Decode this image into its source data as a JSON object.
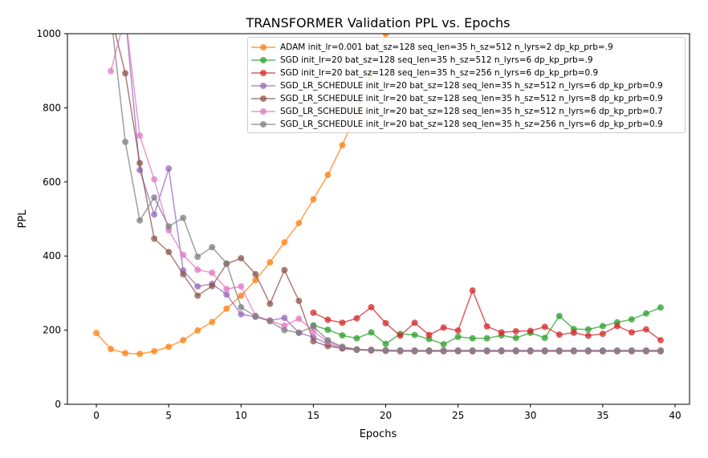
{
  "chart_data": {
    "type": "line",
    "title": "TRANSFORMER Validation PPL vs. Epochs",
    "xlabel": "Epochs",
    "ylabel": "PPL",
    "xlim": [
      -2,
      41
    ],
    "ylim": [
      0,
      1000
    ],
    "xticks": [
      0,
      5,
      10,
      15,
      20,
      25,
      30,
      35,
      40
    ],
    "yticks": [
      0,
      200,
      400,
      600,
      800,
      1000
    ],
    "grid": false,
    "legend_position": "top-right",
    "series": [
      {
        "name": "ADAM init_lr=0.001 bat_sz=128 seq_len=35 h_sz=512 n_lyrs=2 dp_kp_prb=.9",
        "color": "#ff7f0e",
        "x": [
          0,
          1,
          2,
          3,
          4,
          5,
          6,
          7,
          8,
          9,
          10,
          11,
          12,
          13,
          14,
          15,
          16,
          17,
          18,
          19,
          20
        ],
        "y": [
          192,
          149,
          138,
          136,
          143,
          155,
          173,
          199,
          222,
          258,
          293,
          335,
          383,
          437,
          489,
          553,
          619,
          699,
          790,
          890,
          1000
        ]
      },
      {
        "name": "SGD init_lr=20 bat_sz=128 seq_len=35 h_sz=512 n_lyrs=6 dp_kp_prb=.9",
        "color": "#2ca02c",
        "x": [
          15,
          16,
          17,
          18,
          19,
          20,
          21,
          22,
          23,
          24,
          25,
          26,
          27,
          28,
          29,
          30,
          31,
          32,
          33,
          34,
          35,
          36,
          37,
          38,
          39
        ],
        "y": [
          213,
          201,
          186,
          178,
          194,
          163,
          190,
          187,
          176,
          162,
          182,
          178,
          178,
          186,
          179,
          193,
          179,
          238,
          203,
          202,
          211,
          221,
          229,
          245,
          261
        ]
      },
      {
        "name": "SGD init_lr=20 bat_sz=128 seq_len=35 h_sz=256 n_lyrs=6 dp_kp_prb=0.9",
        "color": "#d62728",
        "x": [
          15,
          16,
          17,
          18,
          19,
          20,
          21,
          22,
          23,
          24,
          25,
          26,
          27,
          28,
          29,
          30,
          31,
          32,
          33,
          34,
          35,
          36,
          37,
          38,
          39
        ],
        "y": [
          247,
          228,
          220,
          232,
          262,
          219,
          185,
          220,
          187,
          207,
          199,
          307,
          210,
          194,
          197,
          198,
          209,
          188,
          193,
          185,
          190,
          211,
          194,
          202,
          173
        ]
      },
      {
        "name": "SGD_LR_SCHEDULE init_lr=20 bat_sz=128 seq_len=35 h_sz=512 n_lyrs=6 dp_kp_prb=0.9",
        "color": "#9467bd",
        "x": [
          1,
          2,
          3,
          4,
          5,
          6,
          7,
          8,
          9,
          10,
          11,
          12,
          13,
          14,
          15,
          16,
          17,
          18,
          19,
          20,
          21,
          22,
          23,
          24,
          25,
          26,
          27,
          28,
          29,
          30,
          31,
          32,
          33,
          34,
          35,
          36,
          37,
          38,
          39
        ],
        "y": [
          1100,
          1050,
          632,
          512,
          636,
          361,
          318,
          325,
          296,
          243,
          236,
          226,
          233,
          193,
          181,
          163,
          151,
          147,
          147,
          146,
          145,
          144,
          144,
          144,
          144,
          144,
          144,
          144,
          144,
          144,
          144,
          144,
          144,
          144,
          144,
          144,
          144,
          144,
          144
        ]
      },
      {
        "name": "SGD_LR_SCHEDULE init_lr=20 bat_sz=128 seq_len=35 h_sz=512 n_lyrs=8 dp_kp_prb=0.9",
        "color": "#8c564b",
        "x": [
          1,
          2,
          3,
          4,
          5,
          6,
          7,
          8,
          9,
          10,
          11,
          12,
          13,
          14,
          15,
          16,
          17,
          18,
          19,
          20,
          21,
          22,
          23,
          24,
          25,
          26,
          27,
          28,
          29,
          30,
          31,
          32,
          33,
          34,
          35,
          36,
          37,
          38,
          39
        ],
        "y": [
          1050,
          893,
          651,
          447,
          411,
          351,
          293,
          319,
          379,
          394,
          351,
          271,
          362,
          279,
          170,
          157,
          151,
          147,
          145,
          144,
          143,
          143,
          143,
          143,
          143,
          143,
          143,
          143,
          143,
          143,
          143,
          143,
          143,
          143,
          143,
          143,
          143,
          143,
          143
        ]
      },
      {
        "name": "SGD_LR_SCHEDULE init_lr=20 bat_sz=128 seq_len=35 h_sz=512 n_lyrs=6 dp_kp_prb=0.7",
        "color": "#e377c2",
        "x": [
          1,
          2,
          3,
          4,
          5,
          6,
          7,
          8,
          9,
          10,
          11,
          12,
          13,
          14,
          15,
          16,
          17,
          18,
          19,
          20,
          21,
          22,
          23,
          24,
          25,
          26,
          27,
          28,
          29,
          30,
          31,
          32,
          33,
          34,
          35,
          36,
          37,
          38,
          39
        ],
        "y": [
          899,
          1050,
          725,
          607,
          470,
          403,
          363,
          355,
          311,
          318,
          239,
          226,
          212,
          231,
          197,
          168,
          155,
          148,
          147,
          146,
          145,
          145,
          145,
          145,
          145,
          145,
          145,
          145,
          145,
          145,
          145,
          145,
          145,
          145,
          145,
          145,
          145,
          145,
          145
        ]
      },
      {
        "name": "SGD_LR_SCHEDULE init_lr=20 bat_sz=128 seq_len=35 h_sz=256 n_lyrs=6 dp_kp_prb=0.9",
        "color": "#7f7f7f",
        "x": [
          1,
          2,
          3,
          4,
          5,
          6,
          7,
          8,
          9,
          10,
          11,
          12,
          13,
          14,
          15,
          16,
          17,
          18,
          19,
          20,
          21,
          22,
          23,
          24,
          25,
          26,
          27,
          28,
          29,
          30,
          31,
          32,
          33,
          34,
          35,
          36,
          37,
          38,
          39
        ],
        "y": [
          1050,
          708,
          496,
          558,
          480,
          503,
          398,
          424,
          380,
          262,
          237,
          224,
          200,
          193,
          210,
          173,
          155,
          148,
          146,
          145,
          145,
          145,
          145,
          145,
          145,
          145,
          145,
          145,
          145,
          145,
          145,
          145,
          145,
          145,
          145,
          145,
          145,
          145,
          145
        ]
      }
    ]
  }
}
